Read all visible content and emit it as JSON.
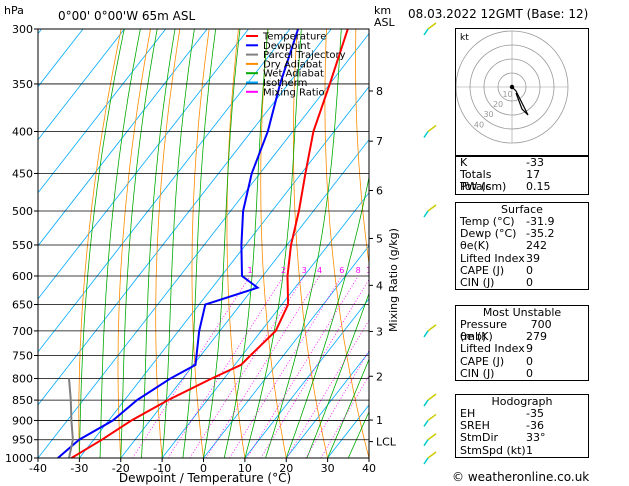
{
  "header": {
    "hpa_label": "hPa",
    "location": "0°00' 0°00'W 65m ASL",
    "km_label": "km",
    "asl_label": "ASL",
    "datetime": "08.03.2022 12GMT (Base: 12)"
  },
  "legend": [
    {
      "label": "Temperature",
      "color": "#ff0000"
    },
    {
      "label": "Dewpoint",
      "color": "#0000ff"
    },
    {
      "label": "Parcel Trajectory",
      "color": "#7f7f7f"
    },
    {
      "label": "Dry Adiabat",
      "color": "#ff8c00"
    },
    {
      "label": "Wet Adiabat",
      "color": "#00aa00"
    },
    {
      "label": "Isotherm",
      "color": "#00aaff"
    },
    {
      "label": "Mixing Ratio",
      "color": "#ff00ff"
    }
  ],
  "chart_data": {
    "type": "line",
    "title": "Skew-T log-P diagram",
    "xlabel": "Dewpoint / Temperature (°C)",
    "ylabel": "hPa",
    "xlim": [
      -40,
      40
    ],
    "ylim": [
      1000,
      300
    ],
    "x_ticks": [
      "-40",
      "-30",
      "-20",
      "-10",
      "0",
      "10",
      "20",
      "30",
      "40"
    ],
    "pressure_levels": [
      "300",
      "350",
      "400",
      "450",
      "500",
      "550",
      "600",
      "650",
      "700",
      "750",
      "800",
      "850",
      "900",
      "950",
      "1000"
    ],
    "km_ticks": [
      {
        "label": "8",
        "p": 357
      },
      {
        "label": "7",
        "p": 411
      },
      {
        "label": "6",
        "p": 472
      },
      {
        "label": "5",
        "p": 540
      },
      {
        "label": "4",
        "p": 616
      },
      {
        "label": "3",
        "p": 701
      },
      {
        "label": "2",
        "p": 795
      },
      {
        "label": "1",
        "p": 899
      },
      {
        "label": "LCL",
        "p": 955
      }
    ],
    "mixing_ratio_axis_label": "Mixing Ratio (g/kg)",
    "mixing_ratio_labels": [
      "1",
      "2",
      "3",
      "4",
      "6",
      "8",
      "10",
      "15",
      "20",
      "25"
    ],
    "series": [
      {
        "name": "Temperature",
        "color": "#ff0000",
        "p": [
          1000,
          950,
          900,
          850,
          800,
          770,
          750,
          700,
          650,
          600,
          550,
          500,
          450,
          400,
          350,
          300
        ],
        "t": [
          -31.9,
          -28,
          -24.5,
          -19.5,
          -13,
          -8.5,
          -8,
          -6.5,
          -8.5,
          -14,
          -19,
          -23.5,
          -29,
          -35,
          -40,
          -46
        ]
      },
      {
        "name": "Dewpoint",
        "color": "#0000ff",
        "p": [
          1000,
          950,
          900,
          850,
          800,
          770,
          700,
          650,
          620,
          600,
          550,
          500,
          450,
          400,
          350,
          300
        ],
        "t": [
          -35.2,
          -33.5,
          -29,
          -27,
          -23,
          -19.5,
          -25,
          -28.5,
          -19,
          -25,
          -31,
          -37,
          -42,
          -46,
          -52,
          -58
        ]
      },
      {
        "name": "Parcel Trajectory",
        "color": "#7f7f7f",
        "p": [
          1000,
          950,
          900,
          850,
          800
        ],
        "t": [
          -32.5,
          -35,
          -39,
          -43,
          -47.5
        ]
      }
    ]
  },
  "hodograph": {
    "label": "kt",
    "rings": [
      "10",
      "20",
      "30",
      "40"
    ]
  },
  "indices": [
    {
      "key": "K",
      "value": "-33"
    },
    {
      "key": "Totals Totals",
      "value": "17"
    },
    {
      "key": "PW (cm)",
      "value": "0.15"
    }
  ],
  "surface": {
    "title": "Surface",
    "rows": [
      {
        "key": "Temp (°C)",
        "value": "-31.9"
      },
      {
        "key": "Dewp (°C)",
        "value": "-35.2"
      },
      {
        "key": "θe(K)",
        "value": "242"
      },
      {
        "key": "Lifted Index",
        "value": "39"
      },
      {
        "key": "CAPE (J)",
        "value": "0"
      },
      {
        "key": "CIN (J)",
        "value": "0"
      }
    ]
  },
  "most_unstable": {
    "title": "Most Unstable",
    "rows": [
      {
        "key": "Pressure (mb)",
        "value": "700"
      },
      {
        "key": "θe (K)",
        "value": "279"
      },
      {
        "key": "Lifted Index",
        "value": "9"
      },
      {
        "key": "CAPE (J)",
        "value": "0"
      },
      {
        "key": "CIN (J)",
        "value": "0"
      }
    ]
  },
  "hodograph_stats": {
    "title": "Hodograph",
    "rows": [
      {
        "key": "EH",
        "value": "-35"
      },
      {
        "key": "SREH",
        "value": "-36"
      },
      {
        "key": "StmDir",
        "value": "33°"
      },
      {
        "key": "StmSpd (kt)",
        "value": "1"
      }
    ]
  },
  "footer": "© weatheronline.co.uk"
}
